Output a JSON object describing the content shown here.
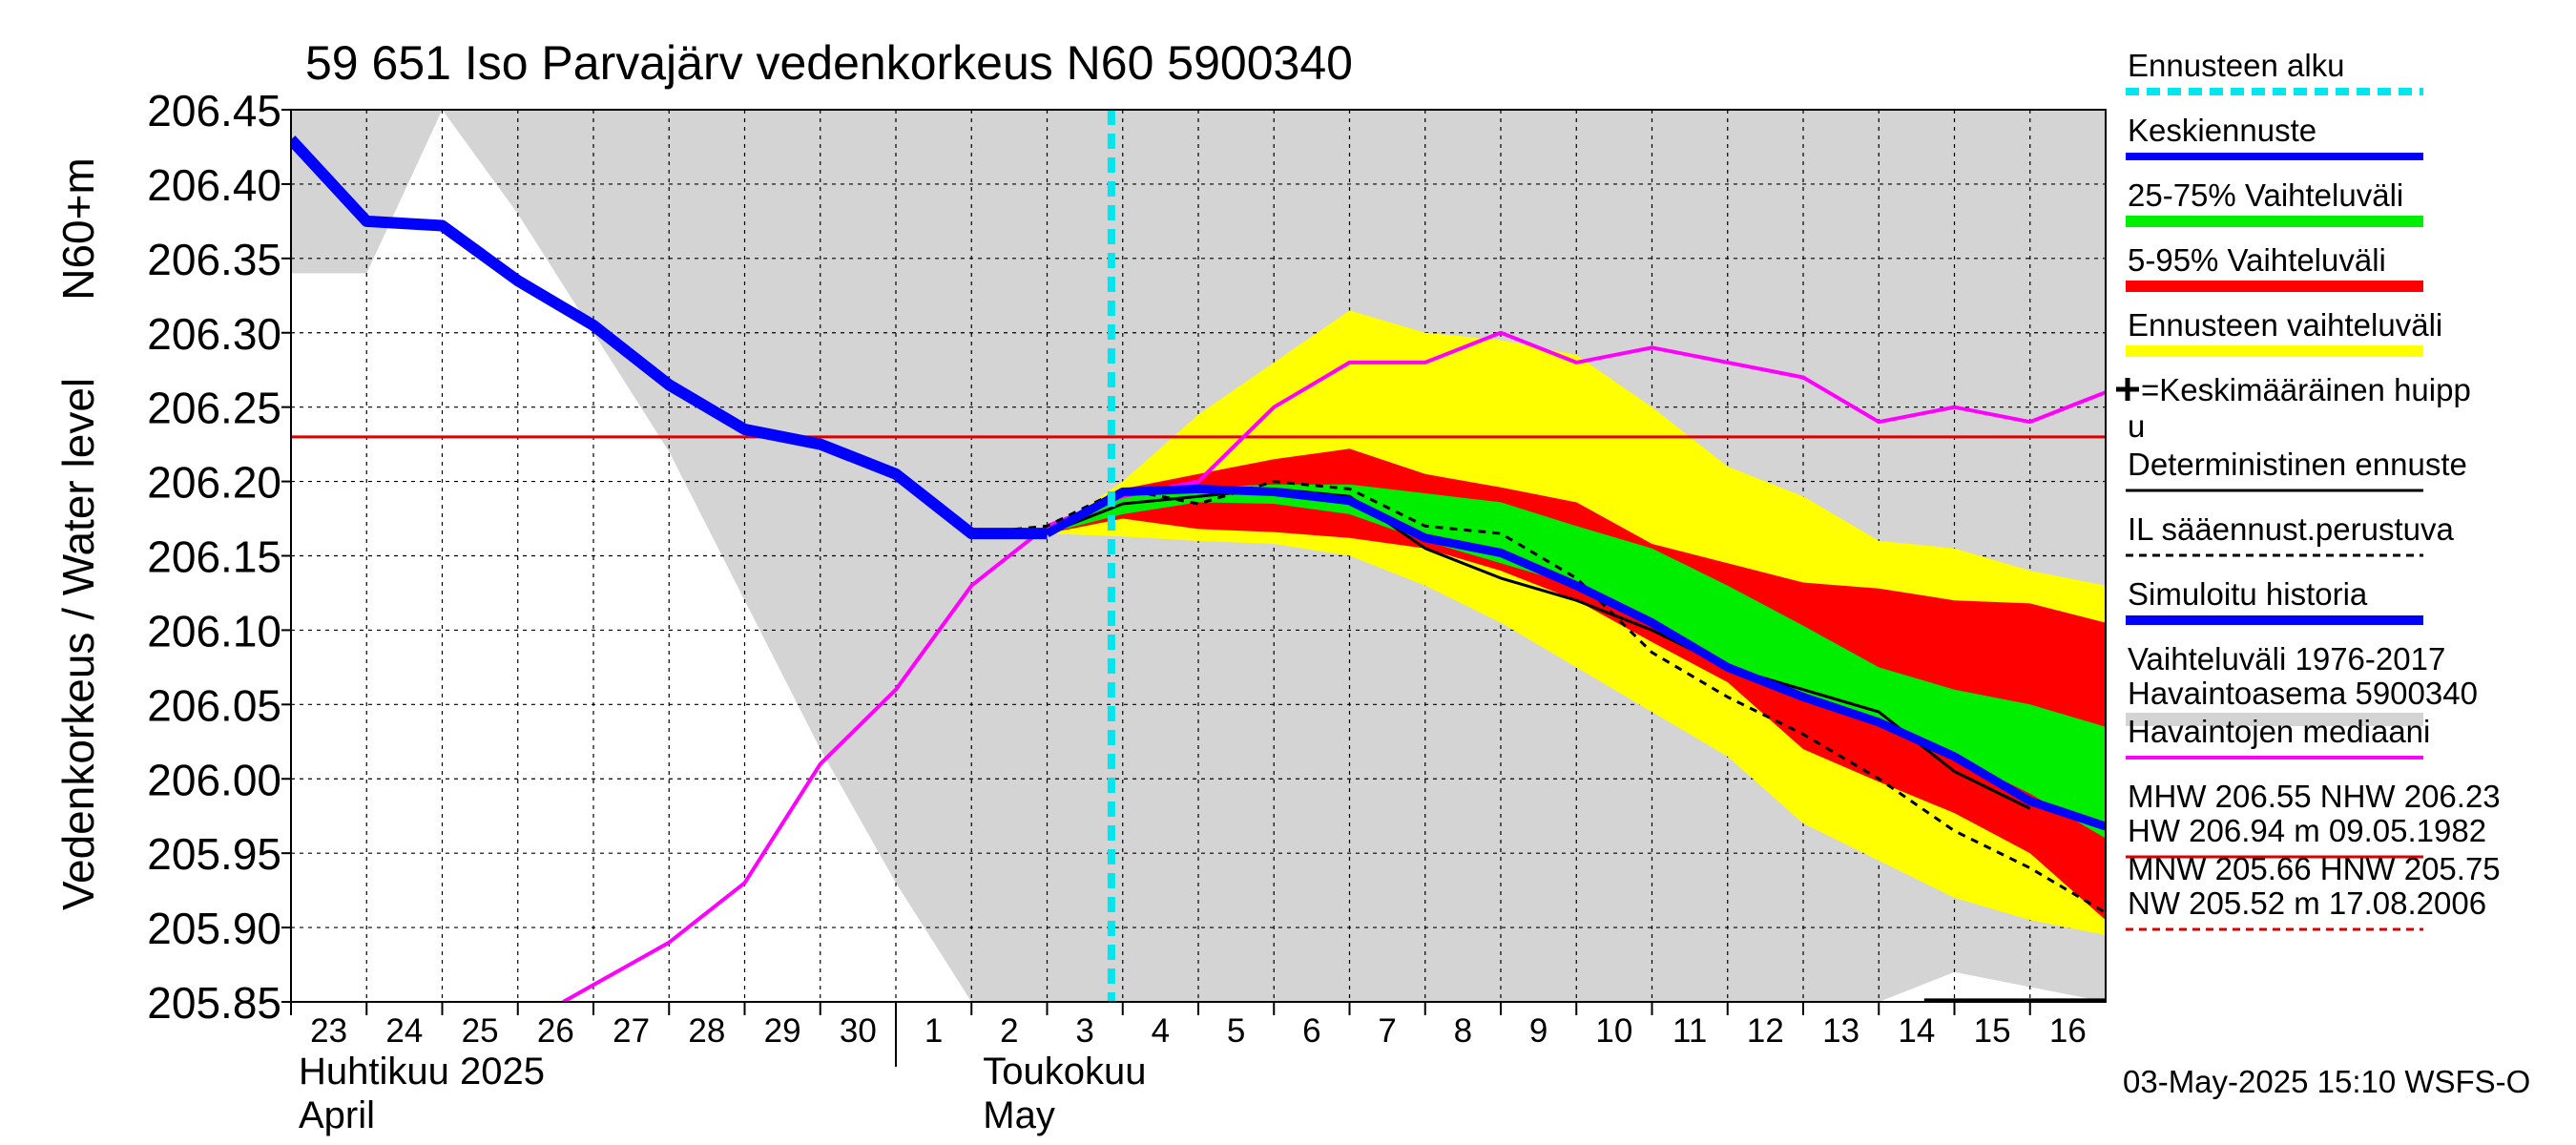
{
  "chart_data": {
    "type": "area",
    "title": "59 651 Iso Parvajärv vedenkorkeus N60 5900340",
    "ylabel_outer": "Vedenkorkeus / Water level",
    "ylabel_inner": "N60+m",
    "ylim": [
      205.85,
      206.45
    ],
    "yticks": [
      "206.45",
      "206.40",
      "206.35",
      "206.30",
      "206.25",
      "206.20",
      "206.15",
      "206.10",
      "206.05",
      "206.00",
      "205.95",
      "205.90",
      "205.85"
    ],
    "x_day_labels": [
      "23",
      "24",
      "25",
      "26",
      "27",
      "28",
      "29",
      "30",
      "1",
      "2",
      "3",
      "4",
      "5",
      "6",
      "7",
      "8",
      "9",
      "10",
      "11",
      "12",
      "13",
      "14",
      "15",
      "16"
    ],
    "month_labels": [
      {
        "fi": "Huhtikuu  2025",
        "en": "April"
      },
      {
        "fi": "Toukokuu",
        "en": "May"
      }
    ],
    "forecast_start_day": 10.85,
    "reference_line": 206.23,
    "timestamp": "03-May-2025 15:10 WSFS-O",
    "colors": {
      "history": "#d4d4d4",
      "range_full": "#ffff00",
      "range_5_95": "#ff0000",
      "range_25_75": "#00ee00",
      "mean_forecast": "#0000ff",
      "median_obs": "#ff00ff",
      "forecast_start": "#00e5ee",
      "reference": "#dd0000"
    },
    "history_band": {
      "x": [
        0,
        1,
        2,
        3,
        4,
        5,
        6,
        7,
        8,
        9,
        10,
        11,
        12,
        13,
        14,
        15,
        16,
        17,
        18,
        19,
        20,
        21,
        22,
        23,
        24
      ],
      "upper": [
        206.45,
        206.45,
        206.45,
        206.45,
        206.45,
        206.45,
        206.45,
        206.45,
        206.45,
        206.45,
        206.45,
        206.45,
        206.45,
        206.45,
        206.45,
        206.45,
        206.45,
        206.45,
        206.45,
        206.45,
        206.45,
        206.45,
        206.45,
        206.45,
        206.45
      ],
      "lower": [
        206.34,
        206.34,
        206.45,
        206.38,
        206.3,
        206.22,
        206.12,
        206.02,
        205.93,
        205.85,
        205.85,
        205.85,
        205.85,
        205.85,
        205.85,
        205.85,
        205.85,
        205.85,
        205.85,
        205.85,
        205.85,
        205.85,
        205.87,
        205.86,
        205.85
      ]
    },
    "series": [
      {
        "name": "Ennusteen vaihteluväli",
        "x": [
          9,
          10,
          11,
          12,
          13,
          14,
          15,
          16,
          17,
          18,
          19,
          20,
          21,
          22,
          23,
          24
        ],
        "upper": [
          206.165,
          206.165,
          206.2,
          206.245,
          206.28,
          206.315,
          206.3,
          206.295,
          206.285,
          206.25,
          206.21,
          206.19,
          206.16,
          206.155,
          206.14,
          206.13
        ],
        "lower": [
          206.165,
          206.165,
          206.163,
          206.16,
          206.158,
          206.15,
          206.13,
          206.105,
          206.075,
          206.045,
          206.015,
          205.97,
          205.945,
          205.92,
          205.905,
          205.895
        ]
      },
      {
        "name": "5-95% Vaihteluväli",
        "x": [
          9,
          10,
          11,
          12,
          13,
          14,
          15,
          16,
          17,
          18,
          19,
          20,
          21,
          22,
          23,
          24
        ],
        "upper": [
          206.165,
          206.165,
          206.195,
          206.205,
          206.215,
          206.222,
          206.205,
          206.196,
          206.186,
          206.158,
          206.145,
          206.132,
          206.128,
          206.12,
          206.118,
          206.105
        ],
        "lower": [
          206.165,
          206.165,
          206.175,
          206.168,
          206.166,
          206.162,
          206.155,
          206.14,
          206.12,
          206.092,
          206.065,
          206.02,
          205.998,
          205.977,
          205.95,
          205.905
        ]
      },
      {
        "name": "25-75% Vaihteluväli",
        "x": [
          9,
          10,
          11,
          12,
          13,
          14,
          15,
          16,
          17,
          18,
          19,
          20,
          21,
          22,
          23,
          24
        ],
        "upper": [
          206.165,
          206.165,
          206.19,
          206.196,
          206.198,
          206.198,
          206.192,
          206.186,
          206.17,
          206.155,
          206.13,
          206.103,
          206.075,
          206.06,
          206.05,
          206.035
        ],
        "lower": [
          206.165,
          206.165,
          206.178,
          206.186,
          206.185,
          206.178,
          206.16,
          206.145,
          206.13,
          206.105,
          206.078,
          206.058,
          206.035,
          206.015,
          205.99,
          205.96
        ]
      },
      {
        "name": "Havaintojen mediaani",
        "x": [
          3.6,
          5,
          6,
          7,
          8,
          9,
          10,
          11,
          12,
          13,
          14,
          15,
          16,
          17,
          18,
          19,
          20,
          21,
          22,
          23,
          24
        ],
        "values": [
          205.85,
          205.89,
          205.93,
          206.01,
          206.06,
          206.13,
          206.17,
          206.19,
          206.2,
          206.25,
          206.28,
          206.28,
          206.3,
          206.28,
          206.29,
          206.28,
          206.27,
          206.24,
          206.25,
          206.24,
          206.26
        ]
      },
      {
        "name": "Deterministinen ennuste",
        "x": [
          9,
          10,
          11,
          12,
          13,
          14,
          15,
          16,
          17,
          18,
          19,
          20,
          21,
          22,
          23
        ],
        "values": [
          206.165,
          206.165,
          206.185,
          206.19,
          206.195,
          206.19,
          206.155,
          206.135,
          206.12,
          206.1,
          206.075,
          206.06,
          206.045,
          206.005,
          205.98
        ]
      },
      {
        "name": "IL sääennust.perustuva",
        "x": [
          9,
          10,
          11,
          12,
          13,
          14,
          15,
          16,
          17,
          18,
          19,
          20,
          21,
          22,
          23,
          24
        ],
        "values": [
          206.165,
          206.17,
          206.195,
          206.185,
          206.2,
          206.195,
          206.17,
          206.165,
          206.135,
          206.085,
          206.055,
          206.03,
          206.0,
          205.965,
          205.94,
          205.91
        ]
      },
      {
        "name": "Simuloitu historia",
        "x": [
          0,
          1,
          2,
          3,
          4,
          5,
          6,
          7,
          8,
          9,
          10
        ],
        "values": [
          206.43,
          206.375,
          206.372,
          206.335,
          206.305,
          206.265,
          206.235,
          206.225,
          206.205,
          206.165,
          206.165
        ]
      },
      {
        "name": "Keskiennuste",
        "x": [
          10,
          11,
          12,
          13,
          14,
          15,
          16,
          17,
          18,
          19,
          20,
          21,
          22,
          23,
          24
        ],
        "values": [
          206.165,
          206.193,
          206.195,
          206.193,
          206.187,
          206.162,
          206.152,
          206.13,
          206.105,
          206.075,
          206.055,
          206.038,
          206.015,
          205.985,
          205.968
        ]
      }
    ],
    "low_obs_line": {
      "x": [
        21.6,
        24
      ],
      "values": [
        205.851,
        205.851
      ]
    }
  },
  "legend": {
    "items": [
      {
        "label": "Ennusteen alku",
        "color": "#00e5ee",
        "style": "dashed",
        "width": 8
      },
      {
        "label": "Keskiennuste",
        "color": "#0000ff",
        "style": "solid",
        "width": 8
      },
      {
        "label": "25-75% Vaihteluväli",
        "color": "#00ee00",
        "style": "solid",
        "width": 12
      },
      {
        "label": "5-95% Vaihteluväli",
        "color": "#ff0000",
        "style": "solid",
        "width": 12
      },
      {
        "label": "Ennusteen vaihteluväli",
        "color": "#ffff00",
        "style": "solid",
        "width": 12
      },
      {
        "label": "=Keskimääräinen huipp",
        "label2": "u",
        "color": "#000000",
        "style": "none",
        "width": 0
      },
      {
        "label": "Deterministinen ennuste",
        "color": "#000000",
        "style": "solid",
        "width": 3
      },
      {
        "label": "IL sääennust.perustuva",
        "color": "#000000",
        "style": "dashed",
        "width": 3
      },
      {
        "label": "Simuloitu historia",
        "color": "#0000ff",
        "style": "solid",
        "width": 10
      },
      {
        "label": "Vaihteluväli 1976-2017",
        "label2": " Havaintoasema 5900340",
        "color": "#d4d4d4",
        "style": "solid",
        "width": 14
      },
      {
        "label": "Havaintojen mediaani",
        "color": "#ff00ff",
        "style": "solid",
        "width": 4
      },
      {
        "label": "MHW 206.55 NHW 206.23",
        "label2": "HW 206.94 m 09.05.1982",
        "color": "#dd0000",
        "style": "solid",
        "width": 3
      },
      {
        "label": "MNW 205.66 HNW 205.75",
        "label2": "NW 205.52 m 17.08.2006",
        "color": "#dd0000",
        "style": "dashed",
        "width": 3
      }
    ]
  }
}
